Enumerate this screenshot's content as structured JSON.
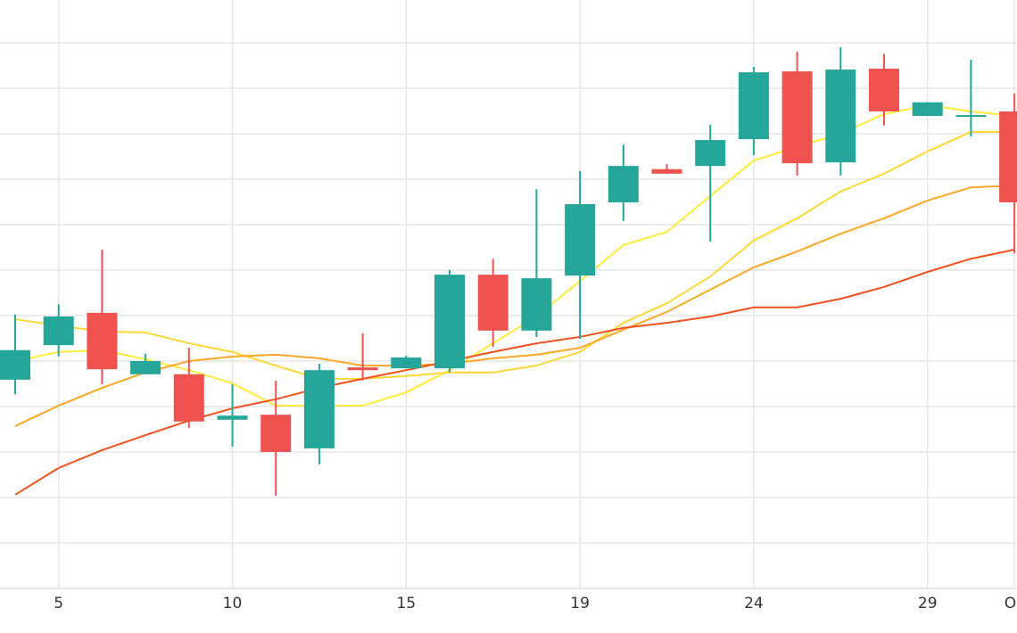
{
  "chart_data": {
    "type": "candlestick",
    "categories": [
      null,
      "5",
      null,
      null,
      null,
      "10",
      null,
      null,
      null,
      "15",
      null,
      null,
      null,
      "19",
      null,
      null,
      null,
      "24",
      null,
      null,
      null,
      "29",
      null,
      "Oc"
    ],
    "open": [
      4.59,
      5.35,
      6.06,
      4.71,
      4.71,
      3.71,
      3.82,
      3.08,
      4.86,
      4.84,
      4.84,
      6.9,
      5.67,
      6.88,
      8.49,
      9.22,
      9.29,
      9.88,
      11.37,
      9.37,
      11.43,
      10.39,
      10.37,
      10.49
    ],
    "high": [
      6.02,
      6.25,
      7.45,
      5.16,
      5.29,
      4.49,
      4.57,
      4.94,
      5.61,
      5.12,
      7.0,
      7.25,
      8.78,
      9.18,
      9.76,
      9.33,
      10.2,
      11.47,
      11.8,
      11.9,
      11.75,
      10.69,
      11.63,
      10.88
    ],
    "low": [
      4.27,
      5.1,
      4.49,
      4.71,
      3.53,
      3.12,
      2.04,
      2.73,
      4.57,
      4.84,
      4.75,
      5.31,
      5.53,
      5.49,
      8.08,
      9.12,
      7.63,
      9.53,
      9.08,
      9.08,
      10.18,
      10.39,
      9.94,
      7.37
    ],
    "close": [
      5.24,
      5.98,
      4.82,
      5.0,
      3.67,
      3.8,
      3.0,
      4.8,
      4.8,
      5.08,
      6.9,
      5.67,
      6.82,
      8.45,
      9.29,
      9.12,
      9.86,
      11.35,
      9.35,
      11.41,
      10.49,
      10.69,
      10.41,
      8.49
    ],
    "up_color": "#26a69a",
    "down_color": "#ef5350",
    "series": [
      {
        "color": "#ffeb3b",
        "values": [
          5.0,
          5.2,
          5.24,
          5.04,
          4.8,
          4.51,
          4.02,
          4.02,
          4.02,
          4.31,
          4.8,
          5.39,
          5.98,
          6.76,
          7.55,
          7.84,
          8.63,
          9.41,
          9.71,
          10.0,
          10.43,
          10.63,
          10.49,
          10.39
        ]
      },
      {
        "color": "#fdd835",
        "values": [
          5.92,
          5.78,
          5.65,
          5.63,
          5.39,
          5.2,
          4.9,
          4.61,
          4.61,
          4.67,
          4.75,
          4.75,
          4.9,
          5.2,
          5.84,
          6.27,
          6.86,
          7.65,
          8.14,
          8.73,
          9.12,
          9.61,
          10.04,
          10.04
        ]
      },
      {
        "color": "#ffa726",
        "values": [
          3.57,
          4.02,
          4.41,
          4.75,
          5.0,
          5.1,
          5.14,
          5.06,
          4.9,
          4.9,
          4.94,
          5.06,
          5.14,
          5.29,
          5.69,
          6.08,
          6.57,
          7.06,
          7.41,
          7.8,
          8.14,
          8.53,
          8.82,
          8.86
        ]
      },
      {
        "color": "#f4511e",
        "values": [
          2.06,
          2.65,
          3.04,
          3.37,
          3.69,
          3.96,
          4.16,
          4.41,
          4.61,
          4.8,
          5.0,
          5.2,
          5.39,
          5.53,
          5.73,
          5.84,
          5.98,
          6.18,
          6.18,
          6.37,
          6.63,
          6.96,
          7.25,
          7.45
        ]
      }
    ],
    "ylim": [
      0,
      12.94
    ],
    "yticks": [
      1,
      2,
      3,
      4,
      5,
      6,
      7,
      8,
      9,
      10,
      11,
      12
    ],
    "grid": true
  }
}
